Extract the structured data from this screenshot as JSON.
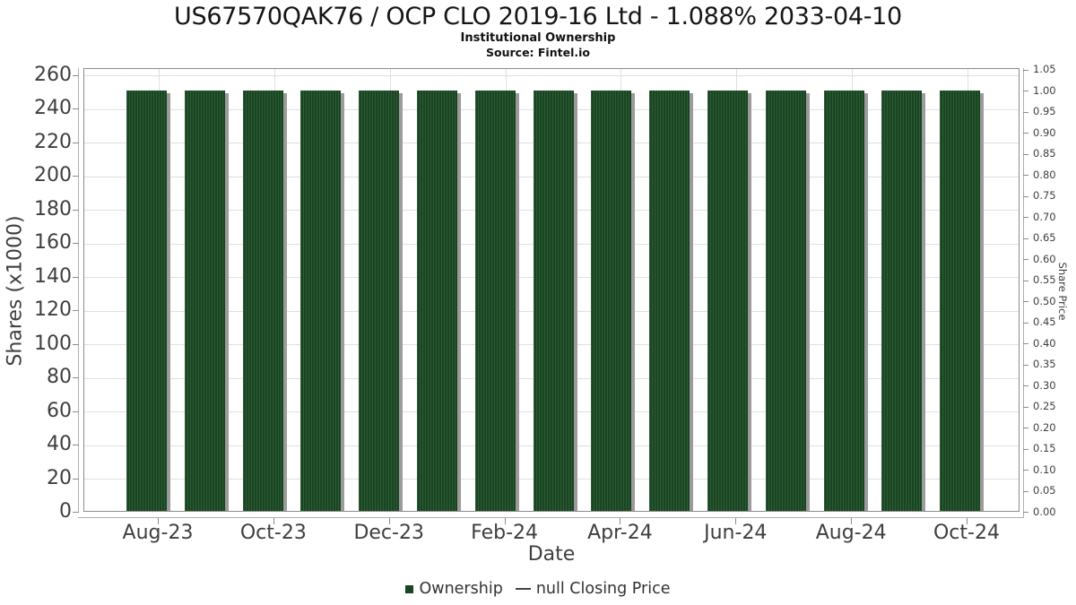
{
  "chart_data": {
    "type": "bar",
    "title": "US67570QAK76 / OCP CLO 2019-16 Ltd - 1.088% 2033-04-10",
    "subtitle": "Institutional Ownership",
    "source": "Source: Fintel.io",
    "categories": [
      "Aug-23",
      "Sep-23",
      "Oct-23",
      "Nov-23",
      "Dec-23",
      "Jan-24",
      "Feb-24",
      "Mar-24",
      "Apr-24",
      "May-24",
      "Jun-24",
      "Jul-24",
      "Aug-24",
      "Sep-24",
      "Oct-24"
    ],
    "series": [
      {
        "name": "Ownership",
        "values": [
          250,
          250,
          250,
          250,
          250,
          250,
          250,
          250,
          250,
          250,
          250,
          250,
          250,
          250,
          250
        ]
      },
      {
        "name": "null Closing Price",
        "values": []
      }
    ],
    "x_axis": {
      "label": "Date",
      "tick_labels": [
        "Aug-23",
        "Oct-23",
        "Dec-23",
        "Feb-24",
        "Apr-24",
        "Jun-24",
        "Aug-24",
        "Oct-24"
      ]
    },
    "y_axis_left": {
      "label": "Shares (x1000)",
      "ticks": [
        0,
        20,
        40,
        60,
        80,
        100,
        120,
        140,
        160,
        180,
        200,
        220,
        240,
        260
      ],
      "range": [
        0,
        260
      ]
    },
    "y_axis_right": {
      "label": "Share Price",
      "ticks": [
        "0.00",
        "0.05",
        "0.10",
        "0.15",
        "0.20",
        "0.25",
        "0.30",
        "0.35",
        "0.40",
        "0.45",
        "0.50",
        "0.55",
        "0.60",
        "0.65",
        "0.70",
        "0.75",
        "0.80",
        "0.85",
        "0.90",
        "0.95",
        "1.00",
        "1.05"
      ],
      "range": [
        0,
        1.05
      ]
    },
    "legend": [
      {
        "label": "Ownership",
        "marker": "square",
        "color": "#1a4522"
      },
      {
        "label": "null Closing Price",
        "marker": "line",
        "color": "#444444"
      }
    ],
    "grid": true,
    "legend_position": "bottom",
    "colors": {
      "bar": "#1a4522",
      "bar_stripe": "#2e5c36",
      "bar_shadow": "#9b9b9b",
      "gridline": "#e0e0e0",
      "plot_border": "#8c8c8c",
      "spine": "#b0b0b0",
      "tick_text": "#3f3f3f",
      "title_text": "#151515"
    }
  }
}
